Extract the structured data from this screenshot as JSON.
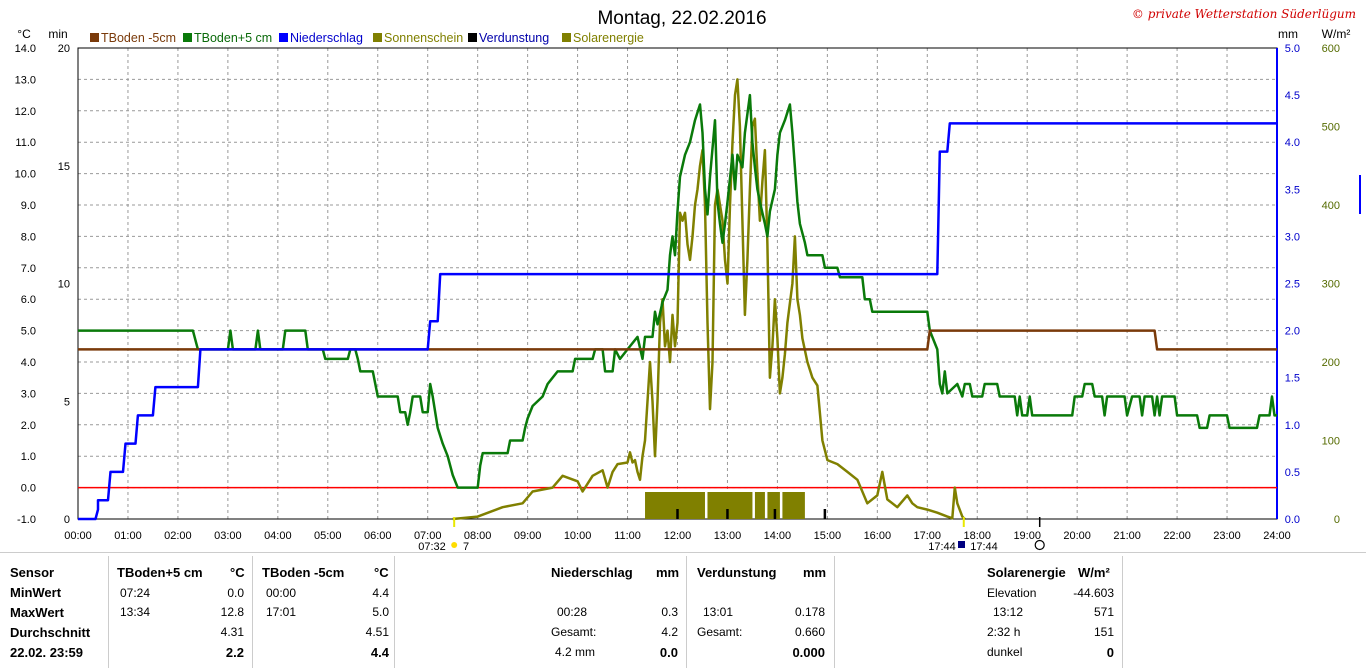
{
  "chart_data": {
    "type": "line",
    "title": "Montag, 22.02.2016",
    "copyright": "© private Wetterstation Süderlügum",
    "units": {
      "left1": "°C",
      "left2": "min",
      "right1": "mm",
      "right2": "W/m²"
    },
    "legend": [
      {
        "name": "TBoden -5cm",
        "color": "#7a3a0a"
      },
      {
        "name": "TBoden+5 cm",
        "color": "#0a7a0a"
      },
      {
        "name": "Niederschlag",
        "color": "#0000ff"
      },
      {
        "name": "Sonnenschein",
        "color": "#808000"
      },
      {
        "name": "Verdunstung",
        "color": "#000000"
      },
      {
        "name": "Solarenergie",
        "color": "#808000"
      }
    ],
    "x_ticks": [
      "00:00",
      "01:00",
      "02:00",
      "03:00",
      "04:00",
      "05:00",
      "06:00",
      "07:00",
      "08:00",
      "09:00",
      "10:00",
      "11:00",
      "12:00",
      "13:00",
      "14:00",
      "15:00",
      "16:00",
      "17:00",
      "18:00",
      "19:00",
      "20:00",
      "21:00",
      "22:00",
      "23:00",
      "24:00"
    ],
    "y_temp_ticks": [
      "-1.0",
      "0.0",
      "1.0",
      "2.0",
      "3.0",
      "4.0",
      "5.0",
      "6.0",
      "7.0",
      "8.0",
      "9.0",
      "10.0",
      "11.0",
      "12.0",
      "13.0",
      "14.0"
    ],
    "y_temp_range": [
      -1,
      14
    ],
    "y_min_ticks": [
      "0",
      "5",
      "10",
      "15",
      "20"
    ],
    "y_mm_ticks": [
      "0.0",
      "0.5",
      "1.0",
      "1.5",
      "2.0",
      "2.5",
      "3.0",
      "3.5",
      "4.0",
      "4.5",
      "5.0"
    ],
    "y_mm_range": [
      0,
      5
    ],
    "y_wm2_ticks": [
      "0",
      "100",
      "200",
      "300",
      "400",
      "500",
      "600"
    ],
    "y_wm2_range": [
      0,
      600
    ],
    "sunrise_label": "07:32",
    "sunrise_extra": "7",
    "sunset_label": "17:44",
    "sunset_label2": "17:44",
    "series_tboden_minus5": [
      [
        0,
        4.4
      ],
      [
        17.0,
        4.4
      ],
      [
        17.05,
        5.0
      ],
      [
        21.55,
        5.0
      ],
      [
        21.6,
        4.4
      ],
      [
        24,
        4.4
      ]
    ],
    "series_tboden_plus5": [
      [
        0,
        5.0
      ],
      [
        2.3,
        5.0
      ],
      [
        2.4,
        4.4
      ],
      [
        3.0,
        4.4
      ],
      [
        3.05,
        5.0
      ],
      [
        3.1,
        4.4
      ],
      [
        3.55,
        4.4
      ],
      [
        3.6,
        5.0
      ],
      [
        3.65,
        4.4
      ],
      [
        4.1,
        4.4
      ],
      [
        4.15,
        5.0
      ],
      [
        4.55,
        5.0
      ],
      [
        4.6,
        4.4
      ],
      [
        4.9,
        4.4
      ],
      [
        4.95,
        4.1
      ],
      [
        5.4,
        4.1
      ],
      [
        5.45,
        4.4
      ],
      [
        5.55,
        4.4
      ],
      [
        5.6,
        4.1
      ],
      [
        5.65,
        3.7
      ],
      [
        5.9,
        3.7
      ],
      [
        5.95,
        3.3
      ],
      [
        6.0,
        2.9
      ],
      [
        6.4,
        2.9
      ],
      [
        6.45,
        2.4
      ],
      [
        6.55,
        2.4
      ],
      [
        6.6,
        2.0
      ],
      [
        6.65,
        2.4
      ],
      [
        6.7,
        2.9
      ],
      [
        6.85,
        2.9
      ],
      [
        6.9,
        2.4
      ],
      [
        7.0,
        2.4
      ],
      [
        7.05,
        3.3
      ],
      [
        7.1,
        2.9
      ],
      [
        7.2,
        1.9
      ],
      [
        7.3,
        1.4
      ],
      [
        7.4,
        1.0
      ],
      [
        7.5,
        0.4
      ],
      [
        7.6,
        0.0
      ],
      [
        8.0,
        0.0
      ],
      [
        8.05,
        0.7
      ],
      [
        8.1,
        1.1
      ],
      [
        8.6,
        1.1
      ],
      [
        8.65,
        1.5
      ],
      [
        8.9,
        1.5
      ],
      [
        8.95,
        1.9
      ],
      [
        9.0,
        2.2
      ],
      [
        9.1,
        2.6
      ],
      [
        9.3,
        2.9
      ],
      [
        9.4,
        3.3
      ],
      [
        9.6,
        3.7
      ],
      [
        9.9,
        3.7
      ],
      [
        9.95,
        4.1
      ],
      [
        10.3,
        4.1
      ],
      [
        10.35,
        4.4
      ],
      [
        10.5,
        4.4
      ],
      [
        10.55,
        3.7
      ],
      [
        10.7,
        3.7
      ],
      [
        10.75,
        4.4
      ],
      [
        10.85,
        4.1
      ],
      [
        11.0,
        4.4
      ],
      [
        11.2,
        4.8
      ],
      [
        11.3,
        4.1
      ],
      [
        11.35,
        4.8
      ],
      [
        11.5,
        4.8
      ],
      [
        11.55,
        5.6
      ],
      [
        11.6,
        5.2
      ],
      [
        11.7,
        5.9
      ],
      [
        11.8,
        6.3
      ],
      [
        11.85,
        7.4
      ],
      [
        11.9,
        8.0
      ],
      [
        11.95,
        7.4
      ],
      [
        12.0,
        8.8
      ],
      [
        12.05,
        9.9
      ],
      [
        12.15,
        10.6
      ],
      [
        12.25,
        11.0
      ],
      [
        12.35,
        11.7
      ],
      [
        12.45,
        12.2
      ],
      [
        12.5,
        11.3
      ],
      [
        12.55,
        9.5
      ],
      [
        12.6,
        8.7
      ],
      [
        12.65,
        9.9
      ],
      [
        12.75,
        11.7
      ],
      [
        12.8,
        9.1
      ],
      [
        12.85,
        8.4
      ],
      [
        12.9,
        7.8
      ],
      [
        12.95,
        8.4
      ],
      [
        13.0,
        9.1
      ],
      [
        13.1,
        10.6
      ],
      [
        13.15,
        9.5
      ],
      [
        13.2,
        10.6
      ],
      [
        13.3,
        10.2
      ],
      [
        13.35,
        11.3
      ],
      [
        13.45,
        12.5
      ],
      [
        13.5,
        11.0
      ],
      [
        13.55,
        10.2
      ],
      [
        13.6,
        9.5
      ],
      [
        13.65,
        9.1
      ],
      [
        13.75,
        8.4
      ],
      [
        13.8,
        8.0
      ],
      [
        13.85,
        8.8
      ],
      [
        13.95,
        9.5
      ],
      [
        14.0,
        10.6
      ],
      [
        14.05,
        11.3
      ],
      [
        14.15,
        11.7
      ],
      [
        14.25,
        12.2
      ],
      [
        14.3,
        11.3
      ],
      [
        14.35,
        10.2
      ],
      [
        14.4,
        9.1
      ],
      [
        14.45,
        8.4
      ],
      [
        14.55,
        7.8
      ],
      [
        14.6,
        7.4
      ],
      [
        14.9,
        7.4
      ],
      [
        14.95,
        7.0
      ],
      [
        15.2,
        7.0
      ],
      [
        15.25,
        6.7
      ],
      [
        15.7,
        6.7
      ],
      [
        15.75,
        6.0
      ],
      [
        15.85,
        6.0
      ],
      [
        15.9,
        5.6
      ],
      [
        17.0,
        5.6
      ],
      [
        17.05,
        5.0
      ],
      [
        17.2,
        4.4
      ],
      [
        17.25,
        3.3
      ],
      [
        17.3,
        3.0
      ],
      [
        17.35,
        3.7
      ],
      [
        17.4,
        3.0
      ],
      [
        17.6,
        3.3
      ],
      [
        17.7,
        2.9
      ],
      [
        17.75,
        3.3
      ],
      [
        17.85,
        3.3
      ],
      [
        17.9,
        2.9
      ],
      [
        18.1,
        2.9
      ],
      [
        18.15,
        3.3
      ],
      [
        18.4,
        3.3
      ],
      [
        18.45,
        2.9
      ],
      [
        18.75,
        2.9
      ],
      [
        18.8,
        2.3
      ],
      [
        18.85,
        2.9
      ],
      [
        18.9,
        2.3
      ],
      [
        18.95,
        2.3
      ],
      [
        19.0,
        2.3
      ],
      [
        19.05,
        2.9
      ],
      [
        19.1,
        2.3
      ],
      [
        19.9,
        2.3
      ],
      [
        19.95,
        2.9
      ],
      [
        20.1,
        2.9
      ],
      [
        20.15,
        3.3
      ],
      [
        20.3,
        3.3
      ],
      [
        20.35,
        2.9
      ],
      [
        20.5,
        2.9
      ],
      [
        20.55,
        2.3
      ],
      [
        20.6,
        2.9
      ],
      [
        20.95,
        2.9
      ],
      [
        21.0,
        2.3
      ],
      [
        21.1,
        2.9
      ],
      [
        21.25,
        2.9
      ],
      [
        21.3,
        2.3
      ],
      [
        21.35,
        2.9
      ],
      [
        21.5,
        2.9
      ],
      [
        21.55,
        2.3
      ],
      [
        21.6,
        2.9
      ],
      [
        21.65,
        2.3
      ],
      [
        21.7,
        2.9
      ],
      [
        21.95,
        2.9
      ],
      [
        22.0,
        2.3
      ],
      [
        22.4,
        2.3
      ],
      [
        22.45,
        1.9
      ],
      [
        22.6,
        1.9
      ],
      [
        22.65,
        2.3
      ],
      [
        23.0,
        2.3
      ],
      [
        23.05,
        1.9
      ],
      [
        23.6,
        1.9
      ],
      [
        23.65,
        2.3
      ],
      [
        23.85,
        2.3
      ],
      [
        23.9,
        2.9
      ],
      [
        23.95,
        2.3
      ],
      [
        24,
        2.3
      ]
    ],
    "series_niederschlag": [
      [
        0,
        0.0
      ],
      [
        0.35,
        0.0
      ],
      [
        0.4,
        0.1
      ],
      [
        0.4,
        0.2
      ],
      [
        0.6,
        0.2
      ],
      [
        0.65,
        0.5
      ],
      [
        0.9,
        0.5
      ],
      [
        0.95,
        0.8
      ],
      [
        1.15,
        0.8
      ],
      [
        1.2,
        1.1
      ],
      [
        1.5,
        1.1
      ],
      [
        1.55,
        1.4
      ],
      [
        2.4,
        1.4
      ],
      [
        2.45,
        1.8
      ],
      [
        7.0,
        1.8
      ],
      [
        7.05,
        2.1
      ],
      [
        7.2,
        2.1
      ],
      [
        7.25,
        2.6
      ],
      [
        15.1,
        2.6
      ],
      [
        17.2,
        2.6
      ],
      [
        17.25,
        3.9
      ],
      [
        17.4,
        3.9
      ],
      [
        17.45,
        4.2
      ],
      [
        24,
        4.2
      ]
    ],
    "series_solar": [
      [
        7.5,
        0
      ],
      [
        8.0,
        3
      ],
      [
        8.5,
        15
      ],
      [
        8.9,
        20
      ],
      [
        9.1,
        35
      ],
      [
        9.5,
        40
      ],
      [
        9.7,
        55
      ],
      [
        10.0,
        48
      ],
      [
        10.1,
        35
      ],
      [
        10.3,
        55
      ],
      [
        10.5,
        62
      ],
      [
        10.6,
        40
      ],
      [
        10.7,
        60
      ],
      [
        10.8,
        70
      ],
      [
        11.0,
        72
      ],
      [
        11.05,
        85
      ],
      [
        11.1,
        72
      ],
      [
        11.15,
        75
      ],
      [
        11.2,
        60
      ],
      [
        11.25,
        50
      ],
      [
        11.3,
        80
      ],
      [
        11.35,
        100
      ],
      [
        11.4,
        150
      ],
      [
        11.45,
        200
      ],
      [
        11.5,
        150
      ],
      [
        11.55,
        80
      ],
      [
        11.6,
        150
      ],
      [
        11.65,
        250
      ],
      [
        11.7,
        280
      ],
      [
        11.75,
        220
      ],
      [
        11.8,
        240
      ],
      [
        11.85,
        200
      ],
      [
        11.9,
        260
      ],
      [
        11.95,
        220
      ],
      [
        12.0,
        250
      ],
      [
        12.05,
        390
      ],
      [
        12.1,
        380
      ],
      [
        12.15,
        390
      ],
      [
        12.2,
        350
      ],
      [
        12.25,
        330
      ],
      [
        12.3,
        360
      ],
      [
        12.35,
        400
      ],
      [
        12.4,
        420
      ],
      [
        12.45,
        450
      ],
      [
        12.5,
        470
      ],
      [
        12.55,
        400
      ],
      [
        12.6,
        250
      ],
      [
        12.65,
        140
      ],
      [
        12.7,
        200
      ],
      [
        12.75,
        400
      ],
      [
        12.8,
        420
      ],
      [
        12.9,
        380
      ],
      [
        12.95,
        330
      ],
      [
        13.0,
        300
      ],
      [
        13.05,
        400
      ],
      [
        13.1,
        480
      ],
      [
        13.15,
        540
      ],
      [
        13.2,
        560
      ],
      [
        13.25,
        500
      ],
      [
        13.3,
        380
      ],
      [
        13.35,
        260
      ],
      [
        13.4,
        330
      ],
      [
        13.45,
        420
      ],
      [
        13.5,
        500
      ],
      [
        13.55,
        510
      ],
      [
        13.6,
        440
      ],
      [
        13.65,
        380
      ],
      [
        13.7,
        430
      ],
      [
        13.75,
        470
      ],
      [
        13.8,
        350
      ],
      [
        13.85,
        180
      ],
      [
        13.9,
        220
      ],
      [
        13.95,
        280
      ],
      [
        14.0,
        230
      ],
      [
        14.05,
        160
      ],
      [
        14.1,
        180
      ],
      [
        14.15,
        210
      ],
      [
        14.2,
        250
      ],
      [
        14.3,
        300
      ],
      [
        14.35,
        360
      ],
      [
        14.4,
        280
      ],
      [
        14.45,
        260
      ],
      [
        14.5,
        230
      ],
      [
        14.6,
        200
      ],
      [
        14.7,
        180
      ],
      [
        14.8,
        170
      ],
      [
        14.9,
        100
      ],
      [
        15.0,
        75
      ],
      [
        15.2,
        70
      ],
      [
        15.4,
        60
      ],
      [
        15.6,
        50
      ],
      [
        15.8,
        20
      ],
      [
        16.0,
        30
      ],
      [
        16.1,
        60
      ],
      [
        16.2,
        25
      ],
      [
        16.4,
        15
      ],
      [
        16.6,
        30
      ],
      [
        16.7,
        20
      ],
      [
        16.8,
        15
      ],
      [
        17.0,
        12
      ],
      [
        17.2,
        8
      ],
      [
        17.4,
        3
      ],
      [
        17.5,
        1
      ],
      [
        17.55,
        40
      ],
      [
        17.6,
        20
      ],
      [
        17.7,
        3
      ],
      [
        17.75,
        0
      ]
    ],
    "sunshine_blocks": [
      [
        11.35,
        12.55
      ],
      [
        12.6,
        13.5
      ],
      [
        13.55,
        13.75
      ],
      [
        13.8,
        14.05
      ],
      [
        14.1,
        14.55
      ]
    ],
    "verdunstung_ticks": [
      12.0,
      13.0,
      13.95,
      14.95
    ],
    "right_edge_marker": "|"
  },
  "table": {
    "sensor_hdr": "Sensor",
    "minwert": "MinWert",
    "maxwert": "MaxWert",
    "durchschnitt": "Durchschnitt",
    "date_time": "22.02. 23:59",
    "tb5_hdr": "TBoden+5 cm",
    "tb5_unit": "°C",
    "tb5_min_time": "07:24",
    "tb5_min_val": "0.0",
    "tb5_max_time": "13:34",
    "tb5_max_val": "12.8",
    "tb5_avg": "4.31",
    "tb5_cur": "2.2",
    "tbm5_hdr": "TBoden -5cm",
    "tbm5_unit": "°C",
    "tbm5_min_time": "00:00",
    "tbm5_min_val": "4.4",
    "tbm5_max_time": "17:01",
    "tbm5_max_val": "5.0",
    "tbm5_avg": "4.51",
    "tbm5_cur": "4.4",
    "nied_hdr": "Niederschlag",
    "nied_unit": "mm",
    "nied_max_time": "00:28",
    "nied_max_val": "0.3",
    "nied_gesamt_lbl": "Gesamt:",
    "nied_gesamt_val": "4.2",
    "nied_cur_lbl": "4.2 mm",
    "nied_cur_val": "0.0",
    "verd_hdr": "Verdunstung",
    "verd_unit": "mm",
    "verd_max_time": "13:01",
    "verd_max_val": "0.178",
    "verd_gesamt_lbl": "Gesamt:",
    "verd_gesamt_val": "0.660",
    "verd_cur_val": "0.000",
    "solar_hdr": "Solarenergie",
    "solar_unit": "W/m²",
    "elev_lbl": "Elevation",
    "elev_val": "-44.603",
    "solar_max_time": "13:12",
    "solar_max_val": "571",
    "sun_h_lbl": "2:32 h",
    "sun_h_val": "151",
    "dunkel_lbl": "dunkel",
    "dunkel_val": "0"
  }
}
